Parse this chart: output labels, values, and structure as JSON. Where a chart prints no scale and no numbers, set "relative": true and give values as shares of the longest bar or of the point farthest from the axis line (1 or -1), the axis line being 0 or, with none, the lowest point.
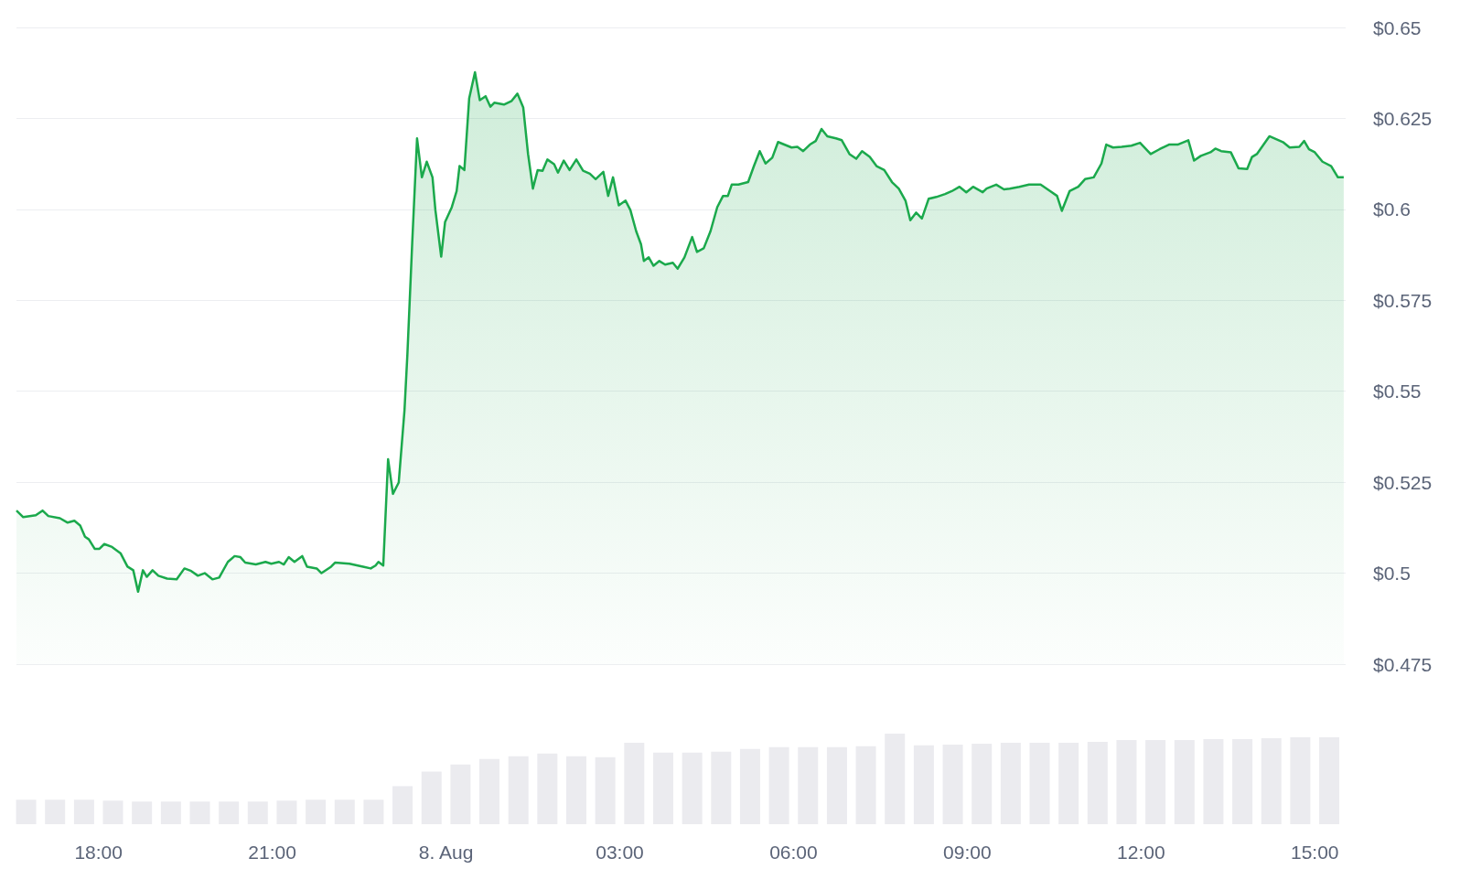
{
  "chart_data": [
    {
      "type": "area",
      "color": "#1ba94c",
      "marker": "none",
      "grid": "y",
      "tick_labels": "y",
      "xlim": [
        "--08-07T16:35",
        "--08-08T15:32"
      ],
      "ylim": [
        0.475,
        0.65
      ],
      "yticks": [
        {
          "value": 0.475,
          "label": "$0.475"
        },
        {
          "value": 0.5,
          "label": "$0.5"
        },
        {
          "value": 0.525,
          "label": "$0.525"
        },
        {
          "value": 0.55,
          "label": "$0.55"
        },
        {
          "value": 0.575,
          "label": "$0.575"
        },
        {
          "value": 0.6,
          "label": "$0.6"
        },
        {
          "value": 0.625,
          "label": "$0.625"
        },
        {
          "value": 0.65,
          "label": "$0.65"
        }
      ],
      "x": [
        "--08-07T16:35",
        "--08-07T16:42",
        "--08-07T16:55",
        "--08-07T17:02",
        "--08-07T17:08",
        "--08-07T17:20",
        "--08-07T17:28",
        "--08-07T17:35",
        "--08-07T17:41",
        "--08-07T17:46",
        "--08-07T17:50",
        "--08-07T17:56",
        "--08-07T18:01",
        "--08-07T18:06",
        "--08-07T18:14",
        "--08-07T18:23",
        "--08-07T18:30",
        "--08-07T18:36",
        "--08-07T18:41",
        "--08-07T18:46",
        "--08-07T18:50",
        "--08-07T18:56",
        "--08-07T19:02",
        "--08-07T19:11",
        "--08-07T19:21",
        "--08-07T19:29",
        "--08-07T19:36",
        "--08-07T19:43",
        "--08-07T19:50",
        "--08-07T19:58",
        "--08-07T20:05",
        "--08-07T20:14",
        "--08-07T20:21",
        "--08-07T20:27",
        "--08-07T20:32",
        "--08-07T20:43",
        "--08-07T20:53",
        "--08-07T20:59",
        "--08-07T21:07",
        "--08-07T21:12",
        "--08-07T21:17",
        "--08-07T21:23",
        "--08-07T21:31",
        "--08-07T21:36",
        "--08-07T21:46",
        "--08-07T21:51",
        "--08-07T22:01",
        "--08-07T22:05",
        "--08-07T22:20",
        "--08-07T22:34",
        "--08-07T22:42",
        "--08-07T22:47",
        "--08-07T22:50",
        "--08-07T22:55",
        "--08-07T23:00",
        "--08-07T23:05",
        "--08-07T23:11",
        "--08-07T23:17",
        "--08-07T23:20",
        "--08-07T23:25",
        "--08-07T23:30",
        "--08-07T23:35",
        "--08-07T23:40",
        "--08-07T23:46",
        "--08-07T23:49",
        "--08-07T23:55",
        "--08-07T23:59",
        "--08-08T00:06",
        "--08-08T00:11",
        "--08-08T00:14",
        "--08-08T00:19",
        "--08-08T00:24",
        "--08-08T00:30",
        "--08-08T00:35",
        "--08-08T00:41",
        "--08-08T00:46",
        "--08-08T00:50",
        "--08-08T01:00",
        "--08-08T01:08",
        "--08-08T01:14",
        "--08-08T01:20",
        "--08-08T01:25",
        "--08-08T01:30",
        "--08-08T01:35",
        "--08-08T01:40",
        "--08-08T01:45",
        "--08-08T01:52",
        "--08-08T01:56",
        "--08-08T02:02",
        "--08-08T02:08",
        "--08-08T02:15",
        "--08-08T02:22",
        "--08-08T02:29",
        "--08-08T02:35",
        "--08-08T02:43",
        "--08-08T02:48",
        "--08-08T02:53",
        "--08-08T02:59",
        "--08-08T03:06",
        "--08-08T03:11",
        "--08-08T03:17",
        "--08-08T03:22",
        "--08-08T03:25",
        "--08-08T03:30",
        "--08-08T03:35",
        "--08-08T03:41",
        "--08-08T03:47",
        "--08-08T03:55",
        "--08-08T04:00",
        "--08-08T04:07",
        "--08-08T04:15",
        "--08-08T04:20",
        "--08-08T04:27",
        "--08-08T04:34",
        "--08-08T04:41",
        "--08-08T04:47",
        "--08-08T04:52",
        "--08-08T04:56",
        "--08-08T05:03",
        "--08-08T05:13",
        "--08-08T05:19",
        "--08-08T05:25",
        "--08-08T05:31",
        "--08-08T05:38",
        "--08-08T05:44",
        "--08-08T05:58",
        "--08-08T06:04",
        "--08-08T06:10",
        "--08-08T06:17",
        "--08-08T06:23",
        "--08-08T06:29",
        "--08-08T06:35",
        "--08-08T06:44",
        "--08-08T06:50",
        "--08-08T06:58",
        "--08-08T07:05",
        "--08-08T07:11",
        "--08-08T07:19",
        "--08-08T07:26",
        "--08-08T07:34",
        "--08-08T07:42",
        "--08-08T07:49",
        "--08-08T07:56",
        "--08-08T08:01",
        "--08-08T08:07",
        "--08-08T08:13",
        "--08-08T08:20",
        "--08-08T08:28",
        "--08-08T08:37",
        "--08-08T08:44",
        "--08-08T08:52",
        "--08-08T08:59",
        "--08-08T09:06",
        "--08-08T09:16",
        "--08-08T09:20",
        "--08-08T09:30",
        "--08-08T09:38",
        "--08-08T09:44",
        "--08-08T09:54",
        "--08-08T10:04",
        "--08-08T10:16",
        "--08-08T10:26",
        "--08-08T10:33",
        "--08-08T10:38",
        "--08-08T10:46",
        "--08-08T10:55",
        "--08-08T11:02",
        "--08-08T11:11",
        "--08-08T11:19",
        "--08-08T11:24",
        "--08-08T11:31",
        "--08-08T11:40",
        "--08-08T11:50",
        "--08-08T11:59",
        "--08-08T12:10",
        "--08-08T12:19",
        "--08-08T12:29",
        "--08-08T12:38",
        "--08-08T12:49",
        "--08-08T12:55",
        "--08-08T13:02",
        "--08-08T13:12",
        "--08-08T13:17",
        "--08-08T13:23",
        "--08-08T13:33",
        "--08-08T13:41",
        "--08-08T13:50",
        "--08-08T13:55",
        "--08-08T14:00",
        "--08-08T14:07",
        "--08-08T14:13",
        "--08-08T14:27",
        "--08-08T14:34",
        "--08-08T14:44",
        "--08-08T14:49",
        "--08-08T14:54",
        "--08-08T15:00",
        "--08-08T15:08",
        "--08-08T15:17",
        "--08-08T15:24",
        "--08-08T15:30"
      ],
      "values": [
        0.5172,
        0.5154,
        0.5159,
        0.5172,
        0.5157,
        0.5151,
        0.5139,
        0.5144,
        0.5131,
        0.51,
        0.5093,
        0.5067,
        0.5067,
        0.508,
        0.5072,
        0.5054,
        0.5018,
        0.5008,
        0.4949,
        0.5008,
        0.499,
        0.5008,
        0.4993,
        0.4985,
        0.4983,
        0.5013,
        0.5006,
        0.4993,
        0.5,
        0.4983,
        0.4988,
        0.5031,
        0.5047,
        0.5044,
        0.5029,
        0.5024,
        0.5031,
        0.5026,
        0.5031,
        0.5024,
        0.5044,
        0.5031,
        0.5047,
        0.5018,
        0.5013,
        0.5,
        0.5018,
        0.5029,
        0.5026,
        0.5018,
        0.5013,
        0.5021,
        0.5031,
        0.5021,
        0.5313,
        0.5218,
        0.5249,
        0.5448,
        0.5602,
        0.5909,
        0.6195,
        0.6088,
        0.6131,
        0.6088,
        0.5998,
        0.587,
        0.5965,
        0.6006,
        0.605,
        0.6119,
        0.6108,
        0.6305,
        0.6377,
        0.63,
        0.6311,
        0.6282,
        0.6293,
        0.6288,
        0.6298,
        0.6318,
        0.628,
        0.6152,
        0.6057,
        0.6108,
        0.6106,
        0.6137,
        0.6124,
        0.6101,
        0.6134,
        0.6108,
        0.6137,
        0.6106,
        0.6098,
        0.6083,
        0.6103,
        0.6037,
        0.6088,
        0.6011,
        0.6024,
        0.5998,
        0.594,
        0.5904,
        0.5858,
        0.5868,
        0.5845,
        0.5858,
        0.5848,
        0.5853,
        0.5837,
        0.5868,
        0.5924,
        0.5883,
        0.5893,
        0.594,
        0.6006,
        0.6037,
        0.6037,
        0.6068,
        0.6068,
        0.6075,
        0.6119,
        0.616,
        0.6126,
        0.6142,
        0.6185,
        0.617,
        0.6172,
        0.616,
        0.6178,
        0.6188,
        0.6221,
        0.6201,
        0.6195,
        0.619,
        0.6152,
        0.6139,
        0.616,
        0.6144,
        0.6119,
        0.6108,
        0.6075,
        0.6057,
        0.6024,
        0.597,
        0.5991,
        0.5975,
        0.6029,
        0.6034,
        0.6042,
        0.605,
        0.6062,
        0.6047,
        0.6062,
        0.6047,
        0.6057,
        0.6068,
        0.6055,
        0.6057,
        0.6062,
        0.6068,
        0.6068,
        0.605,
        0.6037,
        0.5996,
        0.605,
        0.6062,
        0.6083,
        0.6088,
        0.6126,
        0.6178,
        0.617,
        0.6172,
        0.6175,
        0.6183,
        0.6152,
        0.6165,
        0.6178,
        0.6178,
        0.619,
        0.6134,
        0.6147,
        0.6157,
        0.6167,
        0.616,
        0.6157,
        0.6113,
        0.6111,
        0.6144,
        0.6152,
        0.6178,
        0.6201,
        0.6185,
        0.617,
        0.6172,
        0.6188,
        0.6165,
        0.6157,
        0.6131,
        0.6119,
        0.6088,
        0.6088
      ]
    },
    {
      "type": "bar",
      "color": "#ebebef",
      "relative": true,
      "tick_labels": "x",
      "xlim": [
        "--08-07T16:35",
        "--08-08T15:32"
      ],
      "xticks": [
        {
          "value": "--08-07T18:00",
          "label": "18:00"
        },
        {
          "value": "--08-07T21:00",
          "label": "21:00"
        },
        {
          "value": "--08-08T00:00",
          "label": "8. Aug"
        },
        {
          "value": "--08-08T03:00",
          "label": "03:00"
        },
        {
          "value": "--08-08T06:00",
          "label": "06:00"
        },
        {
          "value": "--08-08T09:00",
          "label": "09:00"
        },
        {
          "value": "--08-08T12:00",
          "label": "12:00"
        },
        {
          "value": "--08-08T15:00",
          "label": "15:00"
        }
      ],
      "x": [
        "--08-07T16:45",
        "--08-07T17:15",
        "--08-07T17:45",
        "--08-07T18:15",
        "--08-07T18:45",
        "--08-07T19:15",
        "--08-07T19:45",
        "--08-07T20:15",
        "--08-07T20:45",
        "--08-07T21:15",
        "--08-07T21:45",
        "--08-07T22:15",
        "--08-07T22:45",
        "--08-07T23:15",
        "--08-07T23:45",
        "--08-08T00:15",
        "--08-08T00:45",
        "--08-08T01:15",
        "--08-08T01:45",
        "--08-08T02:15",
        "--08-08T02:45",
        "--08-08T03:15",
        "--08-08T03:45",
        "--08-08T04:15",
        "--08-08T04:45",
        "--08-08T05:15",
        "--08-08T05:45",
        "--08-08T06:15",
        "--08-08T06:45",
        "--08-08T07:15",
        "--08-08T07:45",
        "--08-08T08:15",
        "--08-08T08:45",
        "--08-08T09:15",
        "--08-08T09:45",
        "--08-08T10:15",
        "--08-08T10:45",
        "--08-08T11:15",
        "--08-08T11:45",
        "--08-08T12:15",
        "--08-08T12:45",
        "--08-08T13:15",
        "--08-08T13:45",
        "--08-08T14:15",
        "--08-08T14:45",
        "--08-08T15:15"
      ],
      "values": [
        0.27,
        0.27,
        0.27,
        0.26,
        0.25,
        0.25,
        0.25,
        0.25,
        0.25,
        0.26,
        0.27,
        0.27,
        0.27,
        0.42,
        0.58,
        0.66,
        0.72,
        0.75,
        0.78,
        0.75,
        0.74,
        0.9,
        0.79,
        0.79,
        0.8,
        0.83,
        0.85,
        0.85,
        0.85,
        0.86,
        1,
        0.87,
        0.88,
        0.89,
        0.9,
        0.9,
        0.9,
        0.91,
        0.93,
        0.93,
        0.93,
        0.94,
        0.94,
        0.95,
        0.96,
        0.96
      ]
    }
  ]
}
